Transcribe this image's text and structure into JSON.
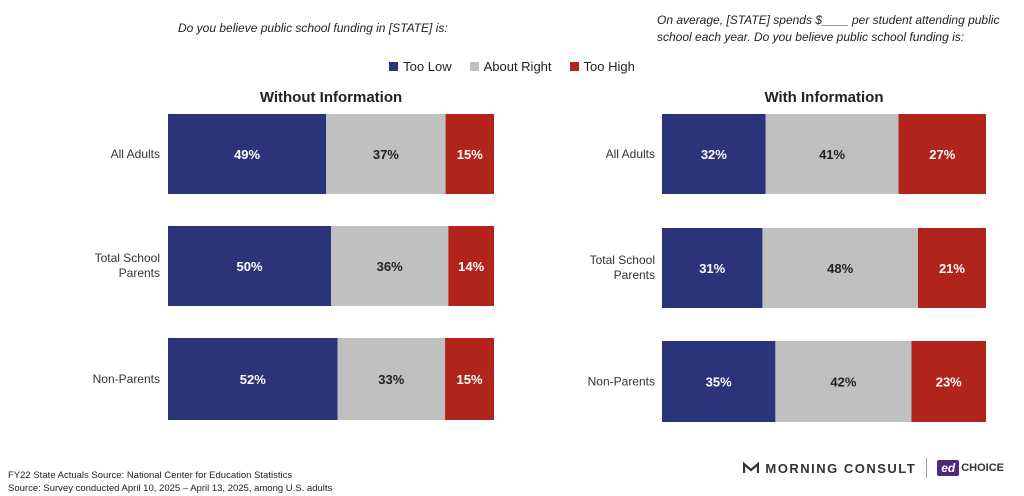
{
  "questions": {
    "left": "Do you believe public school funding in [STATE] is:",
    "right": "On average, [STATE] spends $____ per student attending public school each year. Do you believe public school funding is:"
  },
  "legend": [
    {
      "label": "Too Low",
      "color": "#2b347a"
    },
    {
      "label": "About Right",
      "color": "#c0c0c0"
    },
    {
      "label": "Too High",
      "color": "#b0241c"
    }
  ],
  "chart_data": [
    {
      "type": "bar",
      "orientation": "horizontal-stacked",
      "title": "Without Information",
      "categories": [
        "All Adults",
        "Total School Parents",
        "Non-Parents"
      ],
      "series": [
        {
          "name": "Too Low",
          "values": [
            49,
            50,
            52
          ]
        },
        {
          "name": "About Right",
          "values": [
            37,
            36,
            33
          ]
        },
        {
          "name": "Too High",
          "values": [
            15,
            14,
            15
          ]
        }
      ],
      "unit": "%"
    },
    {
      "type": "bar",
      "orientation": "horizontal-stacked",
      "title": "With Information",
      "categories": [
        "All Adults",
        "Total School Parents",
        "Non-Parents"
      ],
      "series": [
        {
          "name": "Too Low",
          "values": [
            32,
            31,
            35
          ]
        },
        {
          "name": "About Right",
          "values": [
            41,
            48,
            42
          ]
        },
        {
          "name": "Too High",
          "values": [
            27,
            21,
            23
          ]
        }
      ],
      "unit": "%"
    }
  ],
  "footnotes": {
    "line1": "FY22 State Actuals Source: National Center for Education Statistics",
    "line2": "Source: Survey conducted April 10, 2025 – April 13, 2025, among U.S. adults"
  },
  "brand": {
    "morning_consult": "MORNING CONSULT",
    "ed_badge": "ed",
    "ed_choice": "CHOICE"
  }
}
